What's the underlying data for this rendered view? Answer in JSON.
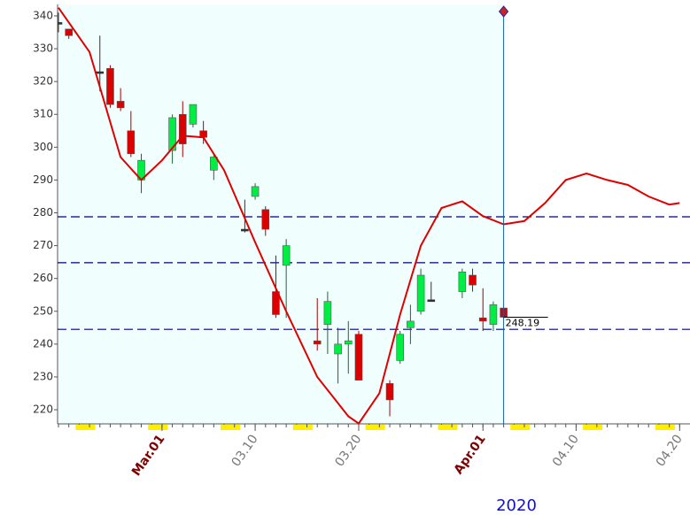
{
  "chart_data": {
    "type": "candlestick",
    "x": [
      "2020-02-20",
      "2020-02-21",
      "2020-02-24",
      "2020-02-25",
      "2020-02-26",
      "2020-02-27",
      "2020-02-28",
      "2020-03-02",
      "2020-03-03",
      "2020-03-04",
      "2020-03-05",
      "2020-03-06",
      "2020-03-09",
      "2020-03-10",
      "2020-03-11",
      "2020-03-12",
      "2020-03-13",
      "2020-03-16",
      "2020-03-17",
      "2020-03-18",
      "2020-03-19",
      "2020-03-20",
      "2020-03-23",
      "2020-03-24",
      "2020-03-25",
      "2020-03-26",
      "2020-03-27",
      "2020-03-30",
      "2020-03-31",
      "2020-04-01",
      "2020-04-02",
      "2020-04-03"
    ],
    "open": [
      338,
      336,
      323,
      324,
      314,
      305,
      290,
      299,
      310,
      307,
      305,
      293,
      275,
      285,
      281,
      256,
      264,
      241,
      246,
      237,
      240,
      243,
      228,
      235,
      245,
      250,
      253.5,
      256,
      261,
      248,
      246,
      251
    ],
    "high": [
      341,
      336,
      334,
      325,
      318,
      311,
      298,
      310,
      314,
      313,
      308,
      298,
      284,
      289,
      282,
      267,
      272,
      254,
      256,
      245,
      247,
      244,
      229,
      244,
      252,
      263,
      259,
      263,
      263,
      257,
      253,
      251
    ],
    "low": [
      335,
      333,
      317,
      312,
      311,
      297,
      286,
      295,
      297,
      306,
      301,
      290,
      274,
      284,
      273,
      248,
      248,
      238,
      237,
      228,
      231,
      229,
      218,
      234,
      240,
      249,
      253,
      254,
      256,
      244,
      244,
      248
    ],
    "close": [
      338,
      334,
      323,
      313,
      312,
      298,
      296,
      309,
      301,
      313,
      303,
      297,
      275,
      288,
      275,
      249,
      270,
      240,
      253,
      240,
      241,
      229,
      223,
      243,
      247,
      261,
      253.5,
      262,
      258,
      247,
      252,
      248.19
    ],
    "up_color": "#00ee44",
    "down_color": "#dd0000",
    "doji_color": "#333333",
    "line": {
      "x": [
        "2020-02-20",
        "2020-02-23",
        "2020-02-26",
        "2020-02-28",
        "2020-03-01",
        "2020-03-03",
        "2020-03-05",
        "2020-03-07",
        "2020-03-10",
        "2020-03-13",
        "2020-03-16",
        "2020-03-19",
        "2020-03-20",
        "2020-03-22",
        "2020-03-24",
        "2020-03-26",
        "2020-03-28",
        "2020-03-30",
        "2020-04-01",
        "2020-04-03",
        "2020-04-05",
        "2020-04-07",
        "2020-04-09",
        "2020-04-11",
        "2020-04-13",
        "2020-04-15",
        "2020-04-17",
        "2020-04-19",
        "2020-04-20"
      ],
      "values": [
        342.5,
        329,
        297,
        290,
        296,
        303.5,
        303,
        293,
        271,
        250,
        230,
        218,
        215.8,
        225,
        249,
        270,
        281.5,
        283.5,
        279,
        276.5,
        277.5,
        283,
        290,
        292,
        290,
        288.5,
        285,
        282.5,
        283
      ],
      "color": "#e00000"
    },
    "hlines": {
      "values": [
        278.8,
        264.8,
        244.5
      ],
      "color": "#000080"
    },
    "cursor_x": "2020-04-03",
    "xlim": [
      "2020-02-20",
      "2020-04-21"
    ],
    "xticks": [
      {
        "value": "2020-03-01",
        "label": "Mar.01"
      },
      {
        "value": "2020-03-10",
        "label": "03.10"
      },
      {
        "value": "2020-03-20",
        "label": "03.20"
      },
      {
        "value": "2020-04-01",
        "label": "Apr.01"
      },
      {
        "value": "2020-04-10",
        "label": "04.10"
      },
      {
        "value": "2020-04-20",
        "label": "04.20"
      }
    ],
    "xlabel": "2020",
    "ylim": [
      215.7,
      343.5
    ],
    "yticks": [
      220,
      230,
      240,
      250,
      260,
      270,
      280,
      290,
      300,
      310,
      320,
      330,
      340
    ]
  }
}
